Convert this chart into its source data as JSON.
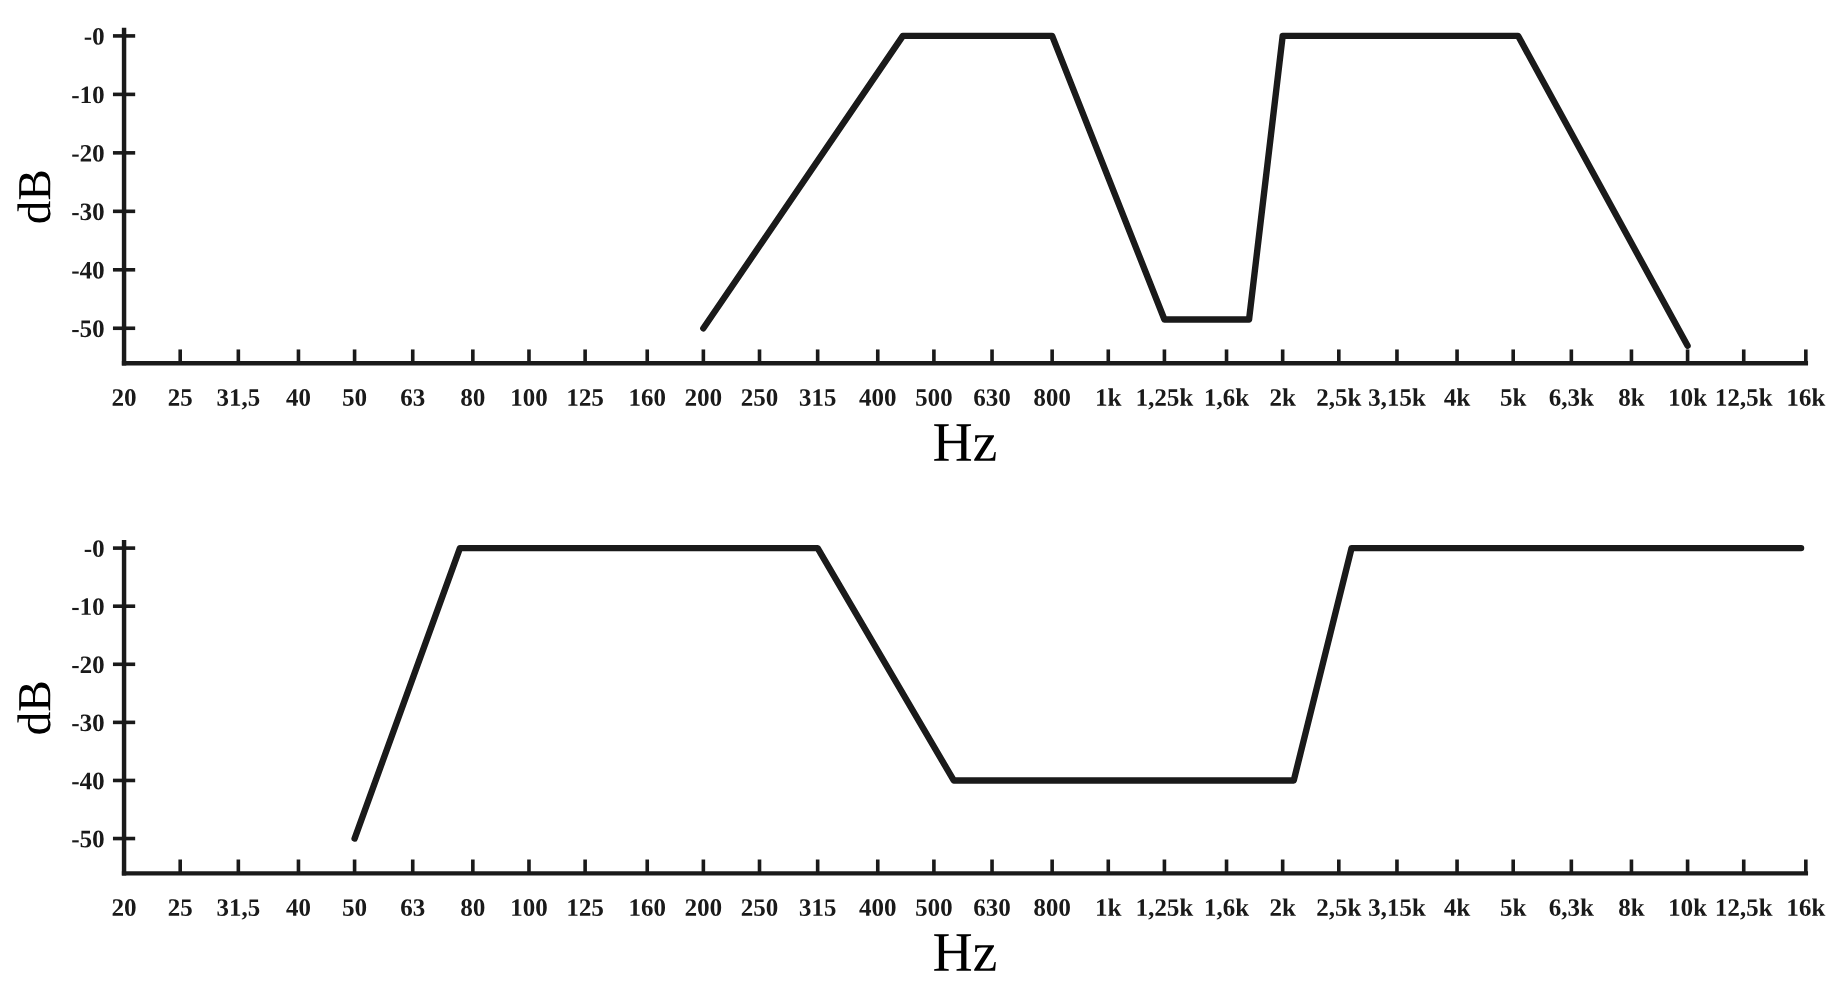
{
  "chart_data": [
    {
      "type": "line",
      "xlabel": "Hz",
      "ylabel": "dB",
      "log": "x",
      "xlim": [
        20,
        16000
      ],
      "ylim": [
        -56,
        1
      ],
      "xticks": [
        20,
        25,
        {
          "value": 31.5,
          "label": "31,5"
        },
        40,
        50,
        63,
        80,
        100,
        125,
        160,
        200,
        250,
        315,
        400,
        500,
        630,
        800,
        {
          "value": 1000,
          "label": "1k"
        },
        {
          "value": 1250,
          "label": "1,25k"
        },
        {
          "value": 1600,
          "label": "1,6k"
        },
        {
          "value": 2000,
          "label": "2k"
        },
        {
          "value": 2500,
          "label": "2,5k"
        },
        {
          "value": 3150,
          "label": "3,15k"
        },
        {
          "value": 4000,
          "label": "4k"
        },
        {
          "value": 5000,
          "label": "5k"
        },
        {
          "value": 6300,
          "label": "6,3k"
        },
        {
          "value": 8000,
          "label": "8k"
        },
        {
          "value": 10000,
          "label": "10k"
        },
        {
          "value": 12500,
          "label": "12,5k"
        },
        {
          "value": 16000,
          "label": "16k"
        }
      ],
      "yticks": [
        {
          "value": 0,
          "label": "-0"
        },
        -10,
        -20,
        -30,
        -40,
        -50
      ],
      "grid": false,
      "marker": "none",
      "line_style": "solid",
      "series": [
        {
          "color": "#1a1a1a",
          "x": [
            200,
            442,
            800,
            1250,
            1750,
            2000,
            5100,
            10000
          ],
          "values": [
            -50,
            0,
            0,
            -48.5,
            -48.5,
            0,
            0,
            -53
          ]
        }
      ]
    },
    {
      "type": "line",
      "xlabel": "Hz",
      "ylabel": "dB",
      "log": "x",
      "xlim": [
        20,
        16000
      ],
      "ylim": [
        -56,
        1
      ],
      "xticks": [
        20,
        25,
        {
          "value": 31.5,
          "label": "31,5"
        },
        40,
        50,
        63,
        80,
        100,
        125,
        160,
        200,
        250,
        315,
        400,
        500,
        630,
        800,
        {
          "value": 1000,
          "label": "1k"
        },
        {
          "value": 1250,
          "label": "1,25k"
        },
        {
          "value": 1600,
          "label": "1,6k"
        },
        {
          "value": 2000,
          "label": "2k"
        },
        {
          "value": 2500,
          "label": "2,5k"
        },
        {
          "value": 3150,
          "label": "3,15k"
        },
        {
          "value": 4000,
          "label": "4k"
        },
        {
          "value": 5000,
          "label": "5k"
        },
        {
          "value": 6300,
          "label": "6,3k"
        },
        {
          "value": 8000,
          "label": "8k"
        },
        {
          "value": 10000,
          "label": "10k"
        },
        {
          "value": 12500,
          "label": "12,5k"
        },
        {
          "value": 16000,
          "label": "16k"
        }
      ],
      "yticks": [
        {
          "value": 0,
          "label": "-0"
        },
        -10,
        -20,
        -30,
        -40,
        -50
      ],
      "grid": false,
      "marker": "none",
      "line_style": "solid",
      "series": [
        {
          "color": "#1a1a1a",
          "x": [
            50,
            76,
            315,
            541,
            2090,
            2630,
            15700
          ],
          "values": [
            -50,
            0,
            0,
            -40,
            -40,
            0,
            0
          ]
        }
      ]
    }
  ]
}
